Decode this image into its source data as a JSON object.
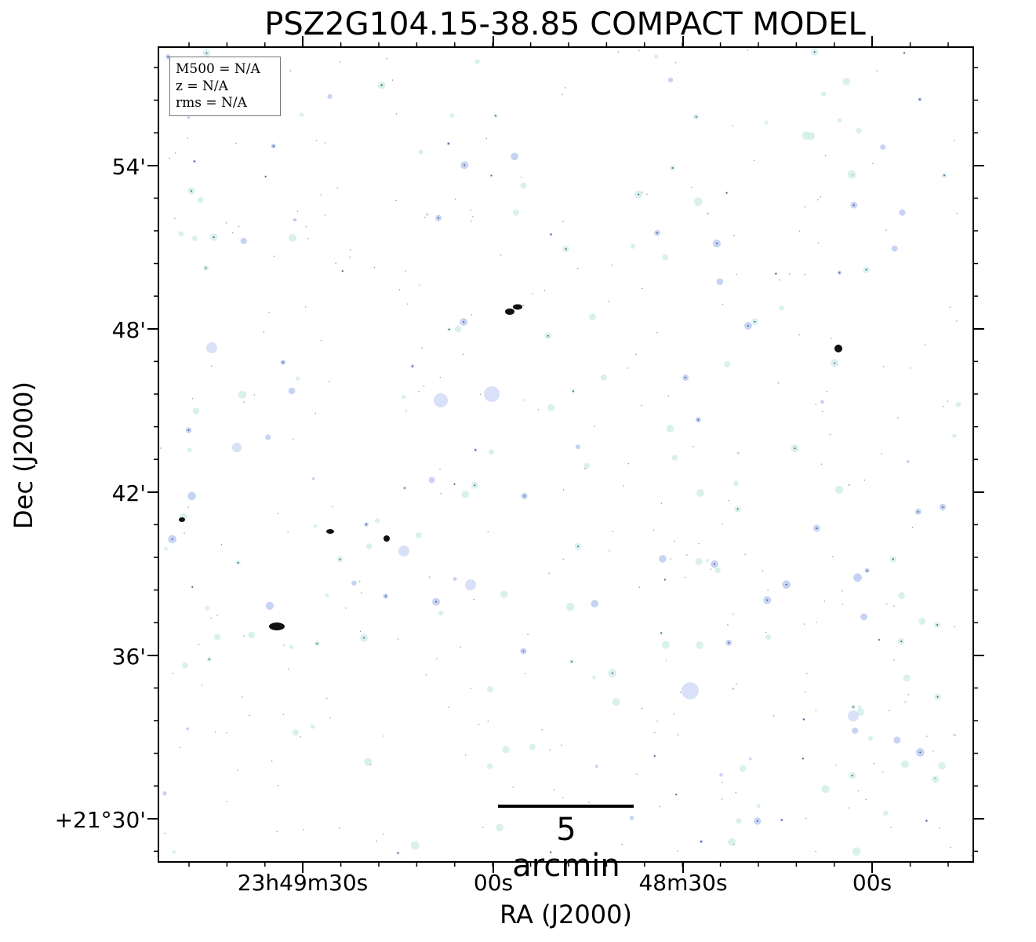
{
  "title": "PSZ2G104.15-38.85 COMPACT MODEL",
  "xlabel": "RA (J2000)",
  "ylabel": "Dec (J2000)",
  "x_ticks": [
    "23h49m30s",
    "00s",
    "48m30s",
    "00s"
  ],
  "y_ticks": [
    "54'",
    "48'",
    "42'",
    "36'",
    "+21°30'"
  ],
  "legend": {
    "line1": "M500 = N/A",
    "line2": "z = N/A",
    "line3": "rms = N/A"
  },
  "scalebar_label": "5 arcmin",
  "colors": {
    "faint_source": "#cfeee8",
    "blue_source": "#b8c8f0",
    "bright_source": "#111111",
    "frame": "#000000"
  }
}
